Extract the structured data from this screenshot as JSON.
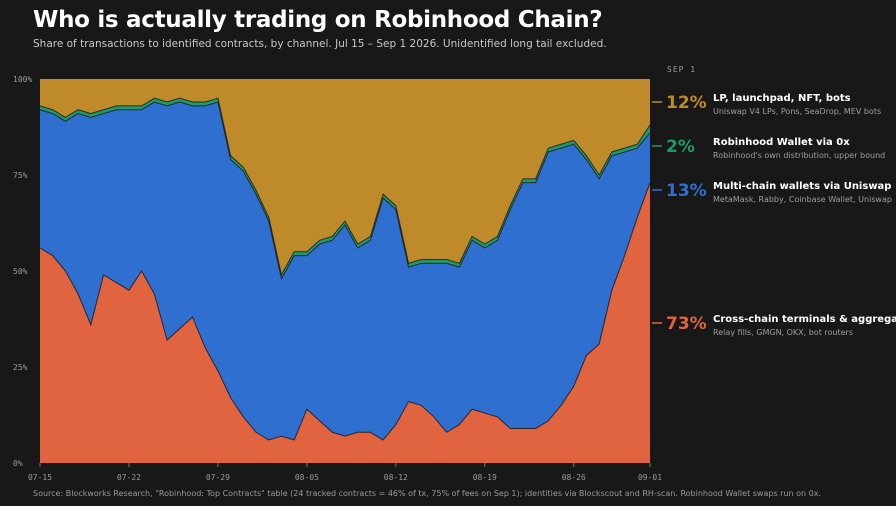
{
  "title": "Who is actually trading on Robinhood Chain?",
  "subtitle": "Share of transactions to identified contracts, by channel. Jul 15 – Sep 1 2026. Unidentified long tail excluded.",
  "source": "Source: Blockworks Research, \"Robinhood: Top Contracts\" table (24 tracked contracts = 46% of tx, 75% of fees on Sep 1); identities via Blockscout and RH-scan. Robinhood Wallet swaps run on 0x.",
  "chart_data": {
    "type": "area",
    "stacked": true,
    "as_of_label": "SEP 1",
    "y_ticks": [
      "100%",
      "75%",
      "50%",
      "25%",
      "0%"
    ],
    "ylim": [
      0,
      100
    ],
    "x_tick_labels": [
      {
        "day": 0,
        "label": "07-15"
      },
      {
        "day": 7,
        "label": "07-22"
      },
      {
        "day": 14,
        "label": "07-29"
      },
      {
        "day": 21,
        "label": "08-05"
      },
      {
        "day": 28,
        "label": "08-12"
      },
      {
        "day": 35,
        "label": "08-19"
      },
      {
        "day": 42,
        "label": "08-26"
      },
      {
        "day": 48,
        "label": "09-01"
      }
    ],
    "days": [
      0,
      1,
      2,
      3,
      4,
      5,
      6,
      7,
      8,
      9,
      10,
      11,
      12,
      13,
      14,
      15,
      16,
      17,
      18,
      19,
      20,
      21,
      22,
      23,
      24,
      25,
      26,
      27,
      28,
      29,
      30,
      31,
      32,
      33,
      34,
      35,
      36,
      37,
      38,
      39,
      40,
      41,
      42,
      43,
      44,
      45,
      46,
      47,
      48
    ],
    "series": [
      {
        "name": "Cross-chain terminals & aggregators",
        "desc": "Relay fills, GMGN, OKX, bot routers",
        "color": "#e0643f",
        "end_label": "73%",
        "values": [
          56,
          54,
          50,
          44,
          36,
          49,
          47,
          45,
          50,
          44,
          32,
          35,
          38,
          30,
          24,
          17,
          12,
          8,
          6,
          7,
          6,
          14,
          11,
          8,
          7,
          8,
          8,
          6,
          10,
          16,
          15,
          12,
          8,
          10,
          14,
          13,
          12,
          9,
          9,
          9,
          11,
          15,
          20,
          28,
          31,
          45,
          54,
          64,
          73
        ]
      },
      {
        "name": "Multi-chain wallets via Uniswap",
        "desc": "MetaMask, Rabby, Coinbase Wallet, Uniswap",
        "color": "#2e6fd0",
        "end_label": "13%",
        "values": [
          36,
          37,
          39,
          47,
          54,
          42,
          45,
          47,
          42,
          50,
          61,
          59,
          55,
          63,
          70,
          62,
          64,
          62,
          57,
          41,
          48,
          40,
          46,
          50,
          55,
          48,
          50,
          63,
          56,
          35,
          37,
          40,
          44,
          41,
          44,
          43,
          46,
          57,
          64,
          64,
          70,
          67,
          63,
          51,
          43,
          35,
          27,
          18,
          13
        ]
      },
      {
        "name": "Robinhood Wallet via 0x",
        "desc": "Robinhood's own distribution, upper bound",
        "color": "#1f9b6a",
        "end_label": "2%",
        "values": [
          1,
          1,
          1,
          1,
          1,
          1,
          1,
          1,
          1,
          1,
          1,
          1,
          1,
          1,
          1,
          1,
          1,
          1,
          1,
          1,
          1,
          1,
          1,
          1,
          1,
          1,
          1,
          1,
          1,
          1,
          1,
          1,
          1,
          1,
          1,
          1,
          1,
          1,
          1,
          1,
          1,
          1,
          1,
          1,
          1,
          1,
          1,
          1,
          2
        ]
      },
      {
        "name": "LP, launchpad, NFT, bots",
        "desc": "Uniswap V4 LPs, Pons, SeaDrop, MEV bots",
        "color": "#bf8a2a",
        "end_label": "12%"
      }
    ]
  }
}
